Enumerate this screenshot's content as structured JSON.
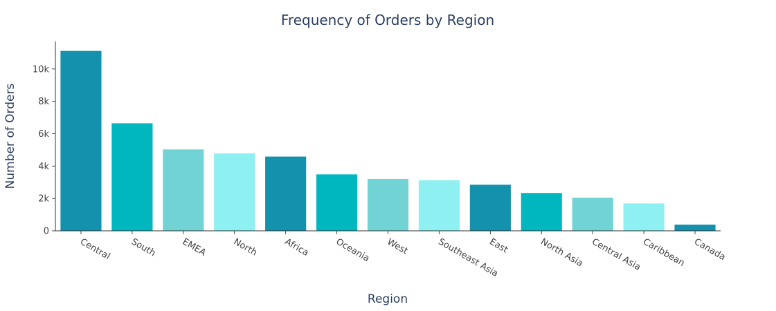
{
  "chart_data": {
    "type": "bar",
    "title": "Frequency of Orders by Region",
    "xlabel": "Region",
    "ylabel": "Number of Orders",
    "categories": [
      "Central",
      "South",
      "EMEA",
      "North",
      "Africa",
      "Oceania",
      "West",
      "Southeast Asia",
      "East",
      "North Asia",
      "Central Asia",
      "Caribbean",
      "Canada"
    ],
    "values": [
      11117,
      6645,
      5029,
      4785,
      4587,
      3487,
      3203,
      3129,
      2848,
      2338,
      2048,
      1690,
      384
    ],
    "colors": [
      "#1391ad",
      "#00b7c0",
      "#72d3d4",
      "#8ef0f0"
    ],
    "ylim": [
      0,
      11700
    ],
    "yticks": [
      0,
      2000,
      4000,
      6000,
      8000,
      10000
    ],
    "ytick_labels": [
      "0",
      "2k",
      "4k",
      "6k",
      "8k",
      "10k"
    ],
    "grid": false,
    "legend": "none"
  }
}
